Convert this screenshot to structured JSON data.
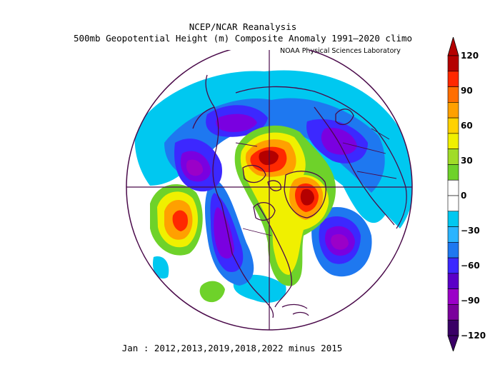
{
  "header": {
    "title": "NCEP/NCAR Reanalysis",
    "subtitle": "500mb Geopotential Height (m) Composite Anomaly 1991–2020 climo",
    "credit": "NOAA Physical Sciences Laboratory"
  },
  "footer": {
    "caption": "Jan : 2012,2013,2019,2018,2022 minus 2015"
  },
  "colorbar": {
    "tick_labels": [
      "120",
      "90",
      "60",
      "30",
      "0",
      "−30",
      "−60",
      "−90",
      "−120"
    ],
    "colors": [
      "#3a0066",
      "#7a009c",
      "#9b00c8",
      "#5a00c8",
      "#3c28ff",
      "#1e78f0",
      "#2ab4ff",
      "#00c8f0",
      "#ffffff",
      "#ffffff",
      "#6ed22a",
      "#a0dc28",
      "#f0f000",
      "#ffd200",
      "#ffa000",
      "#ff6e00",
      "#ff2800",
      "#b40000"
    ]
  },
  "colors": {
    "outline": "#4a0a4a",
    "neg_light": "#00c8f0",
    "neg_mid": "#1e78f0",
    "neg_dark": "#3c28ff",
    "neg_purple": "#7a00e0",
    "neg_deep": "#9b00c8",
    "pos_green": "#6ed22a",
    "pos_yellow": "#f0f000",
    "pos_orange": "#ffa000",
    "pos_red": "#ff2800",
    "pos_dark": "#b40000"
  }
}
